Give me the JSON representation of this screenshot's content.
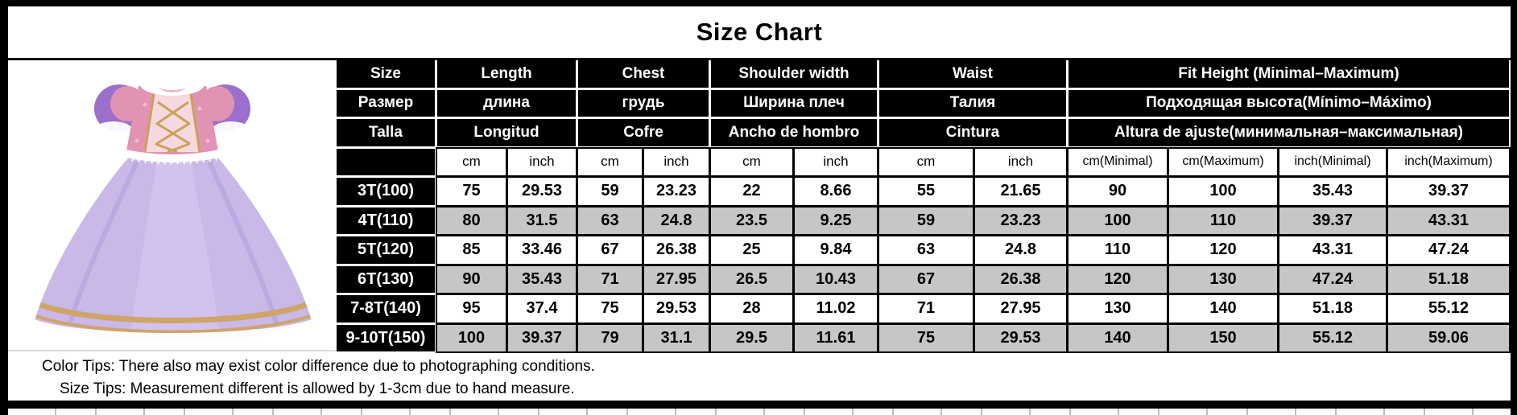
{
  "title": "Size Chart",
  "chart_data": {
    "type": "table",
    "title": "Size Chart",
    "column_groups": [
      {
        "span": 1,
        "labels": [
          "Size",
          "Размер",
          "Talla"
        ]
      },
      {
        "span": 2,
        "labels": [
          "Length",
          "длина",
          "Longitud"
        ]
      },
      {
        "span": 2,
        "labels": [
          "Chest",
          "грудь",
          "Cofre"
        ]
      },
      {
        "span": 2,
        "labels": [
          "Shoulder width",
          "Ширина плеч",
          "Ancho de hombro"
        ]
      },
      {
        "span": 2,
        "labels": [
          "Waist",
          "Талия",
          "Cintura"
        ]
      },
      {
        "span": 4,
        "labels": [
          "Fit Height (Minimal–Maximum)",
          "Подходящая высота(Mínimo–Máximo)",
          "Altura de ajuste(минимальная–максимальная)"
        ]
      }
    ],
    "unit_headers": [
      "cm",
      "inch",
      "cm",
      "inch",
      "cm",
      "inch",
      "cm",
      "inch",
      "cm(Minimal)",
      "cm(Maximum)",
      "inch(Minimal)",
      "inch(Maximum)"
    ],
    "rows": [
      {
        "size": "3T(100)",
        "values": [
          "75",
          "29.53",
          "59",
          "23.23",
          "22",
          "8.66",
          "55",
          "21.65",
          "90",
          "100",
          "35.43",
          "39.37"
        ]
      },
      {
        "size": "4T(110)",
        "values": [
          "80",
          "31.5",
          "63",
          "24.8",
          "23.5",
          "9.25",
          "59",
          "23.23",
          "100",
          "110",
          "39.37",
          "43.31"
        ]
      },
      {
        "size": "5T(120)",
        "values": [
          "85",
          "33.46",
          "67",
          "26.38",
          "25",
          "9.84",
          "63",
          "24.8",
          "110",
          "120",
          "43.31",
          "47.24"
        ]
      },
      {
        "size": "6T(130)",
        "values": [
          "90",
          "35.43",
          "71",
          "27.95",
          "26.5",
          "10.43",
          "67",
          "26.38",
          "120",
          "130",
          "47.24",
          "51.18"
        ]
      },
      {
        "size": "7-8T(140)",
        "values": [
          "95",
          "37.4",
          "75",
          "29.53",
          "28",
          "11.02",
          "71",
          "27.95",
          "130",
          "140",
          "51.18",
          "55.12"
        ]
      },
      {
        "size": "9-10T(150)",
        "values": [
          "100",
          "39.37",
          "79",
          "31.1",
          "29.5",
          "11.61",
          "75",
          "29.53",
          "140",
          "150",
          "55.12",
          "59.06"
        ]
      }
    ]
  },
  "tips": {
    "color_tip": "Color Tips: There also may exist color difference due to photographing conditions.",
    "size_tip": "Size Tips: Measurement different is allowed by 1-3cm due to hand measure."
  },
  "product_image": {
    "description": "purple and pink princess dress with puff sleeves and lavender tulle skirt"
  },
  "colors": {
    "header_bg": "#000000",
    "header_text": "#ffffff",
    "row_alt_bg": "#c6c6c6",
    "grid_border": "#000000",
    "dress_skirt": "#c9b8e8",
    "dress_bodice": "#e292b2",
    "dress_sleeve": "#9a70cc",
    "dress_gold": "#cfa567"
  }
}
